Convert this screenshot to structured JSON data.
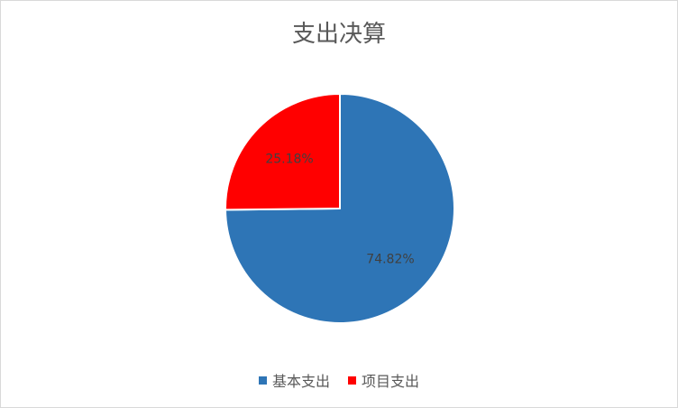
{
  "chart_data": {
    "type": "pie",
    "title": "支出决算",
    "categories": [
      "基本支出",
      "项目支出"
    ],
    "values": [
      74.82,
      25.18
    ],
    "labels": [
      "74.82%",
      "25.18%"
    ],
    "colors": [
      "#2e75b6",
      "#ff0000"
    ],
    "legend": "bottom"
  }
}
